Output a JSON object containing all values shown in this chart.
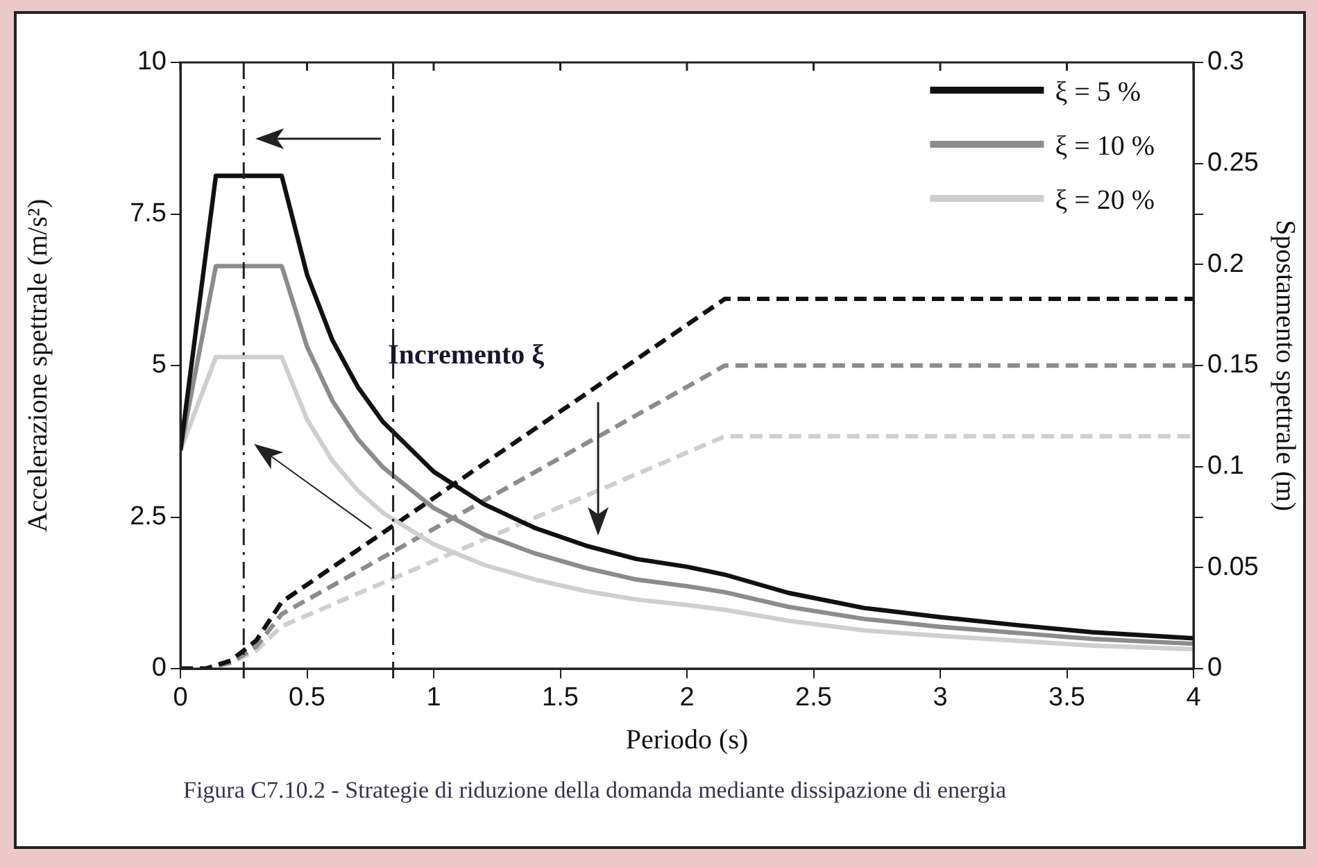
{
  "chart_data": {
    "type": "line",
    "xlabel": "Periodo (s)",
    "ylabel": "Accelerazione spettrale (m/s²)",
    "y2label": "Spostamento spettrale (m)",
    "xlim": [
      0,
      4
    ],
    "xticks": [
      0,
      0.5,
      1,
      1.5,
      2,
      2.5,
      3,
      3.5,
      4
    ],
    "ylim": [
      0,
      10
    ],
    "yticks": [
      0,
      2.5,
      5,
      7.5,
      10
    ],
    "y2lim": [
      0,
      0.3
    ],
    "y2ticks": [
      0,
      0.05,
      0.1,
      0.15,
      0.2,
      0.25,
      0.3,
      {
        "value": 0.075,
        "label": null
      },
      {
        "value": 0.225,
        "label": null
      }
    ],
    "grid": false,
    "legend": "top right",
    "marker": "none",
    "series": [
      {
        "name": "ξ = 5 %",
        "color": "#111111",
        "line_style": "solid",
        "x": [
          0,
          0.14,
          0.4,
          0.5,
          0.6,
          0.7,
          0.8,
          1,
          1.2,
          1.4,
          1.6,
          1.8,
          2,
          2.15,
          2.4,
          2.7,
          3,
          3.3,
          3.6,
          4
        ],
        "values": [
          3.6,
          8.13,
          8.13,
          6.5,
          5.42,
          4.65,
          4.07,
          3.25,
          2.71,
          2.32,
          2.03,
          1.81,
          1.68,
          1.55,
          1.25,
          1.0,
          0.85,
          0.72,
          0.6,
          0.5
        ]
      },
      {
        "name": "ξ = 10 %",
        "color": "#8c8c8c",
        "line_style": "solid",
        "x": [
          0,
          0.14,
          0.4,
          0.5,
          0.6,
          0.7,
          0.8,
          1,
          1.2,
          1.4,
          1.6,
          1.8,
          2,
          2.15,
          2.4,
          2.7,
          3,
          3.3,
          3.6,
          4
        ],
        "values": [
          3.6,
          6.64,
          6.64,
          5.31,
          4.42,
          3.79,
          3.32,
          2.65,
          2.21,
          1.9,
          1.66,
          1.47,
          1.36,
          1.26,
          1.02,
          0.82,
          0.69,
          0.59,
          0.49,
          0.41
        ]
      },
      {
        "name": "ξ = 20 %",
        "color": "#cfcfcf",
        "line_style": "solid",
        "x": [
          0,
          0.14,
          0.4,
          0.5,
          0.6,
          0.7,
          0.8,
          1,
          1.2,
          1.4,
          1.6,
          1.8,
          2,
          2.15,
          2.4,
          2.7,
          3,
          3.3,
          3.6,
          4
        ],
        "values": [
          3.6,
          5.14,
          5.14,
          4.11,
          3.43,
          2.94,
          2.57,
          2.05,
          1.71,
          1.47,
          1.28,
          1.14,
          1.05,
          0.97,
          0.79,
          0.63,
          0.54,
          0.46,
          0.38,
          0.32
        ]
      },
      {
        "color": "#111111",
        "line_style": "dashed",
        "axis": "y2",
        "x": [
          0,
          0.1,
          0.2,
          0.3,
          0.4,
          2.15,
          4
        ],
        "values": [
          0,
          0,
          0.004,
          0.014,
          0.033,
          0.183,
          0.183
        ]
      },
      {
        "color": "#8c8c8c",
        "line_style": "dashed",
        "axis": "y2",
        "x": [
          0,
          0.1,
          0.2,
          0.3,
          0.4,
          2.15,
          4
        ],
        "values": [
          0,
          0,
          0.003,
          0.011,
          0.027,
          0.15,
          0.15
        ]
      },
      {
        "color": "#cfcfcf",
        "line_style": "dashed",
        "axis": "y2",
        "x": [
          0,
          0.1,
          0.2,
          0.3,
          0.4,
          2.15,
          4
        ],
        "values": [
          0,
          0,
          0.003,
          0.009,
          0.021,
          0.115,
          0.115
        ]
      }
    ],
    "ref_lines": [
      {
        "axis": "x",
        "value": 0.25,
        "line_style": "dashdot",
        "color": "#222222"
      },
      {
        "axis": "x",
        "value": 0.84,
        "line_style": "dashdot",
        "color": "#222222"
      }
    ],
    "annotations": [
      "Incremento ξ",
      "Figura C7.10.2 - Strategie di riduzione della domanda mediante dissipazione di energia"
    ]
  }
}
